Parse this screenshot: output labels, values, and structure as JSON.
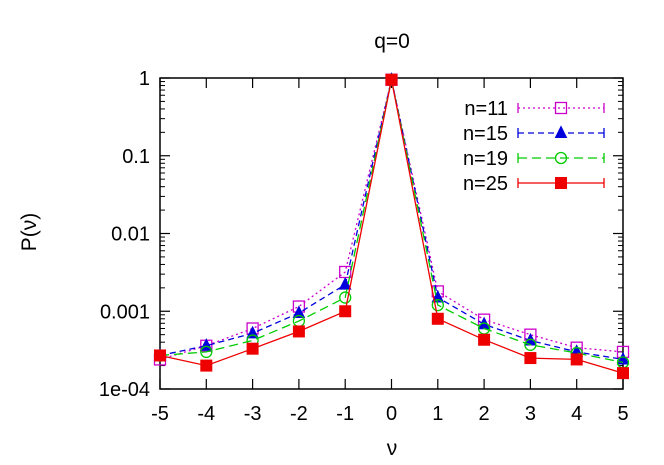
{
  "chart_data": {
    "type": "line",
    "title": "q=0",
    "xlabel": "ν",
    "ylabel": "P(ν)",
    "xlim": [
      -5,
      5
    ],
    "ylim": [
      0.0001,
      1
    ],
    "yscale": "log",
    "x_ticks": [
      -5,
      -4,
      -3,
      -2,
      -1,
      0,
      1,
      2,
      3,
      4,
      5
    ],
    "x_tick_labels": [
      "-5",
      "-4",
      "-3",
      "-2",
      "-1",
      "0",
      "1",
      "2",
      "3",
      "4",
      "5"
    ],
    "y_ticks": [
      0.0001,
      0.001,
      0.01,
      0.1,
      1
    ],
    "y_tick_labels": [
      "1e-04",
      "0.001",
      "0.01",
      "0.1",
      "1"
    ],
    "grid": false,
    "legend_position": "top-right",
    "x": [
      -5,
      -4,
      -3,
      -2,
      -1,
      0,
      1,
      2,
      3,
      4,
      5
    ],
    "series": [
      {
        "name": "n=11",
        "color": "#cc00cc",
        "marker": "open-square",
        "line": "dotted",
        "values": [
          0.00024,
          0.00036,
          0.0006,
          0.00115,
          0.0032,
          0.95,
          0.0018,
          0.00078,
          0.0005,
          0.00034,
          0.0003
        ]
      },
      {
        "name": "n=15",
        "color": "#0000dd",
        "marker": "filled-triangle",
        "line": "dashed",
        "values": [
          0.00027,
          0.00036,
          0.00052,
          0.00095,
          0.0022,
          0.95,
          0.0015,
          0.00068,
          0.00042,
          0.0003,
          0.00024
        ]
      },
      {
        "name": "n=19",
        "color": "#00cc00",
        "marker": "open-circle",
        "line": "long-dashed",
        "values": [
          0.00027,
          0.0003,
          0.00042,
          0.00075,
          0.0015,
          0.95,
          0.0012,
          0.0006,
          0.00037,
          0.00029,
          0.00022
        ]
      },
      {
        "name": "n=25",
        "color": "#ee0000",
        "marker": "filled-square",
        "line": "solid",
        "values": [
          0.00027,
          0.0002,
          0.00033,
          0.00055,
          0.001,
          0.95,
          0.0008,
          0.00043,
          0.00025,
          0.00024,
          0.00016
        ]
      }
    ]
  }
}
